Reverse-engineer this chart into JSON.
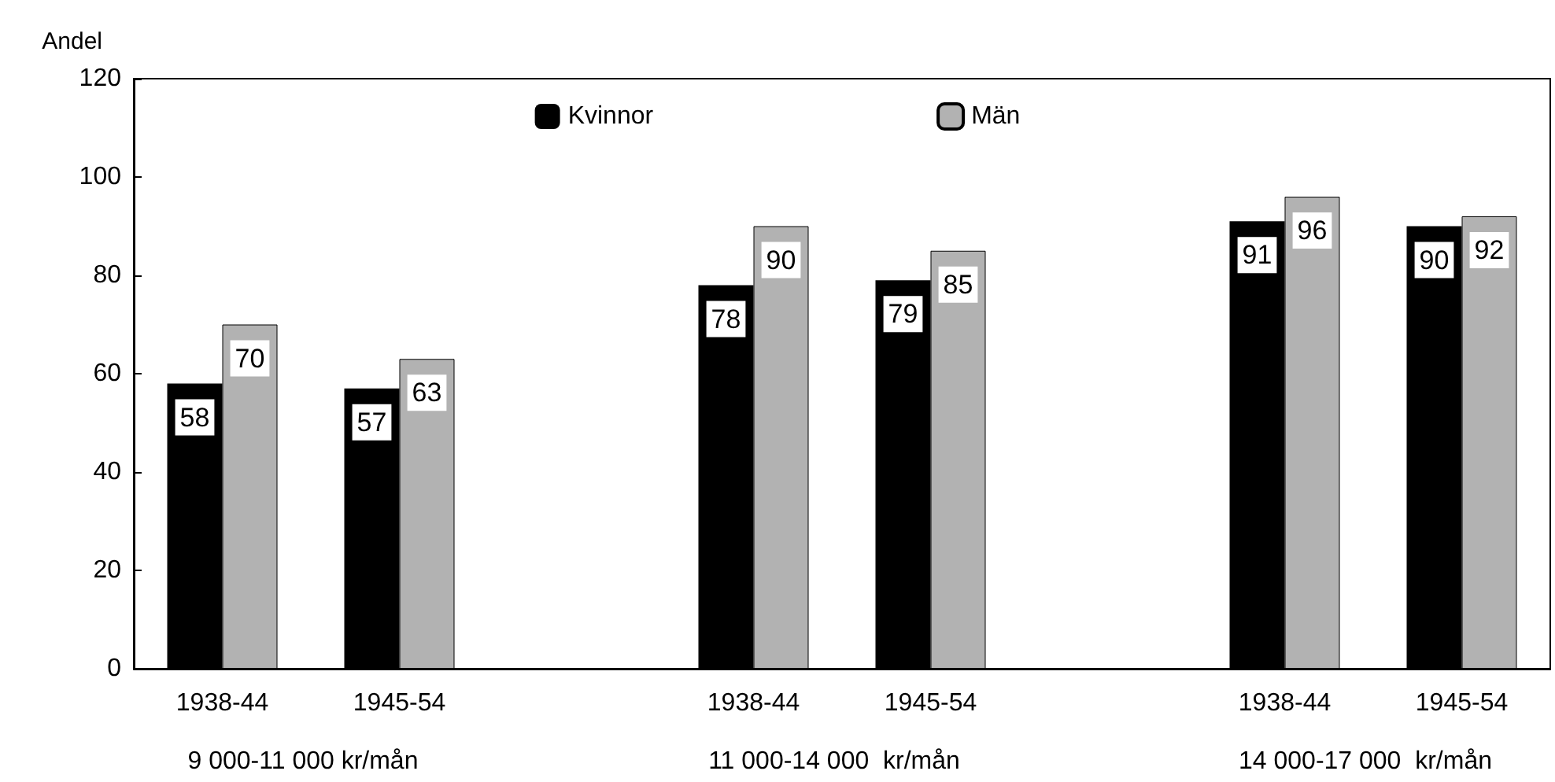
{
  "chart_data": {
    "type": "bar",
    "ylabel": "Andel",
    "categories": [
      "1938-44",
      "1945-54",
      null,
      "1938-44",
      "1945-54",
      null,
      "1938-44",
      "1945-54"
    ],
    "series": [
      {
        "name": "Kvinnor",
        "color": "#000000",
        "values": [
          58,
          57,
          null,
          78,
          79,
          null,
          91,
          90
        ]
      },
      {
        "name": "Män",
        "color": "#b2b2b2",
        "values": [
          70,
          63,
          null,
          90,
          85,
          null,
          96,
          92
        ]
      }
    ],
    "ylim": [
      0,
      120
    ],
    "yticks": [
      0,
      20,
      40,
      60,
      80,
      100,
      120
    ],
    "annotations": [
      "9 000-11 000 kr/mån",
      "11 000-14 000  kr/mån",
      "14 000-17 000  kr/mån"
    ],
    "data_labels": true,
    "legend": "top",
    "grid": false
  }
}
